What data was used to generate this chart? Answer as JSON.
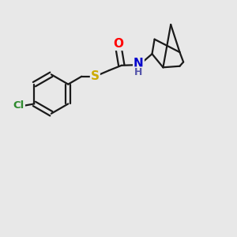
{
  "bg_color": "#e8e8e8",
  "bond_color": "#1a1a1a",
  "atom_colors": {
    "O": "#ff0000",
    "N": "#0000cc",
    "S": "#ccaa00",
    "Cl": "#2d8a2d",
    "H": "#5555aa"
  },
  "line_width": 1.6,
  "font_size": 10,
  "figsize": [
    3.0,
    3.0
  ],
  "dpi": 100
}
